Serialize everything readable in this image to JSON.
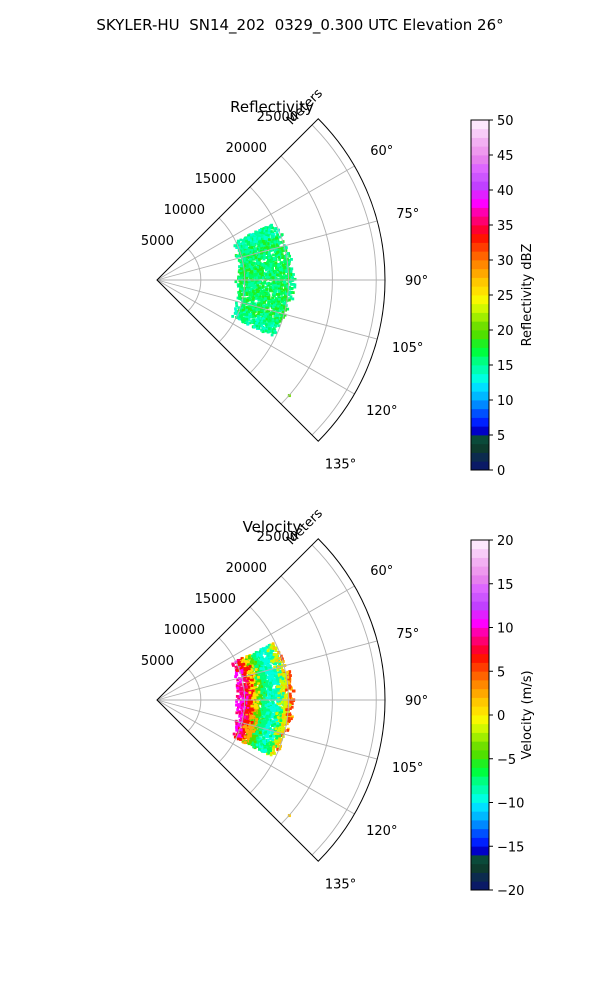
{
  "figure": {
    "title": "SKYLER-HU  SN14_202  0329_0.300 UTC Elevation 26°"
  },
  "chart_data": [
    {
      "type": "heatmap",
      "projection": "polar-sector",
      "title": "Reflectivity",
      "range_label": "Meters",
      "range_ticks": [
        "5000",
        "10000",
        "15000",
        "20000",
        "25000"
      ],
      "range_tick_values": [
        5000,
        10000,
        15000,
        20000,
        25000
      ],
      "rlim": [
        0,
        26000
      ],
      "azimuth_ticks": [
        "60°",
        "75°",
        "90°",
        "105°",
        "120°",
        "135°"
      ],
      "azimuth_tick_values": [
        60,
        75,
        90,
        105,
        120,
        135
      ],
      "azimuth_range": [
        45,
        135
      ],
      "grid": true,
      "colorbar": {
        "label": "Reflectivity dBZ",
        "ticks": [
          "0",
          "5",
          "10",
          "15",
          "20",
          "25",
          "30",
          "35",
          "40",
          "45",
          "50"
        ],
        "range": [
          0,
          50
        ],
        "colors": [
          "#0a1a66",
          "#0b2b4e",
          "#0d3b2e",
          "#0a4a3a",
          "#0000c8",
          "#0020ff",
          "#0050ff",
          "#0088ff",
          "#00b8ff",
          "#00e0ff",
          "#00ffe0",
          "#00ffb0",
          "#00ff80",
          "#00ff40",
          "#20f020",
          "#50e000",
          "#70e000",
          "#a0ee00",
          "#d0f800",
          "#f8f800",
          "#ffe000",
          "#ffc800",
          "#ffa800",
          "#ff8800",
          "#ff6400",
          "#ff3c00",
          "#ff1400",
          "#ff0030",
          "#ff0070",
          "#ff00b0",
          "#ff00ff",
          "#e020ff",
          "#c040ff",
          "#cc55ff",
          "#dd66ff",
          "#e680ee",
          "#ee99ee",
          "#f2b0f2",
          "#f8ccf8",
          "#fde8fd"
        ]
      },
      "echoes": [
        {
          "az": [
            64,
            116
          ],
          "r": [
            9500,
            15500
          ],
          "dominant": "14-18 dBZ"
        }
      ],
      "isolated_echo": {
        "az": 131,
        "r": 20000,
        "value": "~22 dBZ"
      }
    },
    {
      "type": "heatmap",
      "projection": "polar-sector",
      "title": "Velocity",
      "range_label": "Meters",
      "range_ticks": [
        "5000",
        "10000",
        "15000",
        "20000",
        "25000"
      ],
      "range_tick_values": [
        5000,
        10000,
        15000,
        20000,
        25000
      ],
      "rlim": [
        0,
        26000
      ],
      "azimuth_ticks": [
        "60°",
        "75°",
        "90°",
        "105°",
        "120°",
        "135°"
      ],
      "azimuth_tick_values": [
        60,
        75,
        90,
        105,
        120,
        135
      ],
      "azimuth_range": [
        45,
        135
      ],
      "grid": true,
      "colorbar": {
        "label": "Velocity (m/s)",
        "ticks": [
          "−20",
          "−15",
          "−10",
          "−5",
          "0",
          "5",
          "10",
          "15",
          "20"
        ],
        "range": [
          -20,
          20
        ],
        "colors": [
          "#0a1a66",
          "#0b2b4e",
          "#0d3b2e",
          "#0a4a3a",
          "#0000c8",
          "#0020ff",
          "#0050ff",
          "#0088ff",
          "#00b8ff",
          "#00e0ff",
          "#00ffe0",
          "#00ffb0",
          "#00ff80",
          "#00ff40",
          "#20f020",
          "#50e000",
          "#70e000",
          "#a0ee00",
          "#d0f800",
          "#f8f800",
          "#ffe000",
          "#ffc800",
          "#ffa800",
          "#ff8800",
          "#ff6400",
          "#ff3c00",
          "#ff1400",
          "#ff0030",
          "#ff0070",
          "#ff00b0",
          "#ff00ff",
          "#e020ff",
          "#c040ff",
          "#cc55ff",
          "#dd66ff",
          "#e680ee",
          "#ee99ee",
          "#f2b0f2",
          "#f8ccf8",
          "#fde8fd"
        ]
      },
      "echoes": [
        {
          "az": [
            64,
            116
          ],
          "r": [
            9500,
            15500
          ],
          "pattern": "banded: ~+15 m/s near inner edge, ~-12 m/s mid-band, ~0 to +10 m/s outer edge"
        }
      ],
      "isolated_echo": {
        "az": 131,
        "r": 20000,
        "value": "~+2 m/s"
      }
    }
  ]
}
